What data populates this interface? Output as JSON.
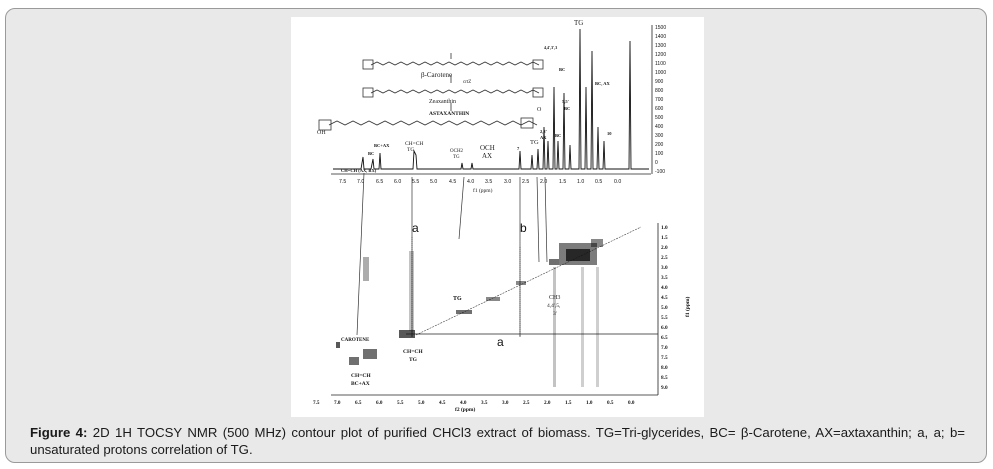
{
  "caption": {
    "label": "Figure 4:",
    "text": "2D 1H TOCSY NMR (500 MHz) contour plot of purified CHCl3 extract of biomass. TG=Tri-glycerides, BC= β-Carotene, AX=axtaxanthin; a, a; b= unsaturated protons correlation of TG."
  },
  "spectrum_1d": {
    "x_ticks": [
      "7.5",
      "7.0",
      "6.5",
      "6.0",
      "5.5",
      "5.0",
      "4.5",
      "4.0",
      "3.5",
      "3.0",
      "2.5",
      "2.0",
      "1.5",
      "1.0",
      "0.5",
      "0.0"
    ],
    "x_label": "f1 (ppm)",
    "y_ticks": [
      "1500",
      "1400",
      "1300",
      "1200",
      "1100",
      "1000",
      "900",
      "800",
      "700",
      "600",
      "500",
      "400",
      "300",
      "200",
      "100",
      "0",
      "-100"
    ],
    "peak_labels": {
      "bcax": "BC+AX",
      "bc_small": "BC",
      "chch": "CH=CH",
      "tg1": "TG",
      "och2": "OCH2",
      "tg2": "TG",
      "och": "OCH",
      "ax": "AX",
      "tg3": "TG",
      "tg_top": "TG",
      "p44": "4,4',3',3",
      "bc1": "BC",
      "p55": "5,5'",
      "bc2": "BC",
      "p22": "2,2'",
      "ax2": "AX",
      "bc3": "BC",
      "bcax2": "BC, AX",
      "p10": "10",
      "p7": "7",
      "chch_axbx": "CH=CH (AX, BX)"
    },
    "structure": {
      "bc": "β-Carotene",
      "zea": "Zeaxanthin",
      "ctrz": "crtZ",
      "astax": "ASTAXANTHIN",
      "oh": "OH",
      "o": "O"
    }
  },
  "tocsy_2d": {
    "x_ticks": [
      "7.5",
      "7.0",
      "6.5",
      "6.0",
      "5.5",
      "5.0",
      "4.5",
      "4.0",
      "3.5",
      "3.0",
      "2.5",
      "2.0",
      "1.5",
      "1.0",
      "0.5",
      "0.0"
    ],
    "x_label": "f2 (ppm)",
    "y_ticks": [
      "1.0",
      "1.5",
      "2.0",
      "2.5",
      "3.0",
      "3.5",
      "4.0",
      "4.5",
      "5.0",
      "5.5",
      "6.0",
      "6.5",
      "7.0",
      "7.5",
      "8.0",
      "8.5",
      "9.0"
    ],
    "y_label": "f1 (ppm)",
    "labels": {
      "a_top": "a",
      "b_top": "b",
      "a_mid": "a",
      "tg": "TG",
      "ch3": "CH3",
      "ch3_pos": "4,4',5,",
      "ch3_pos2": "3'",
      "carotene": "CAROTENE",
      "chch_tg": "CH=CH",
      "tg_low": "TG",
      "chch_bc": "CH=CH",
      "bcax": "BC+AX"
    }
  }
}
